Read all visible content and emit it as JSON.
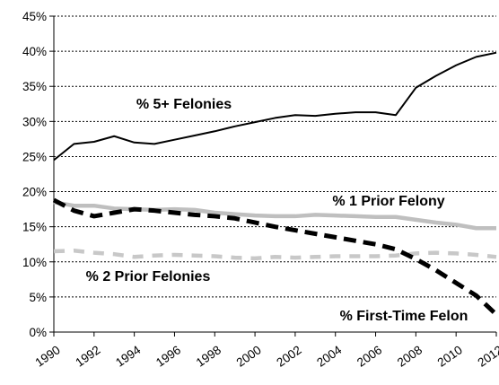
{
  "chart_data": {
    "type": "line",
    "x": [
      1990,
      1991,
      1992,
      1993,
      1994,
      1995,
      1996,
      1997,
      1998,
      1999,
      2000,
      2001,
      2002,
      2003,
      2004,
      2005,
      2006,
      2007,
      2008,
      2009,
      2010,
      2011,
      2012
    ],
    "xlim": [
      1990,
      2012
    ],
    "xticks": [
      1990,
      1992,
      1994,
      1996,
      1998,
      2000,
      2002,
      2004,
      2006,
      2008,
      2010,
      2012
    ],
    "ylim": [
      0,
      45
    ],
    "yticks": [
      {
        "value": 0,
        "label": "0%"
      },
      {
        "value": 5,
        "label": "5%"
      },
      {
        "value": 10,
        "label": "10%"
      },
      {
        "value": 15,
        "label": "15%"
      },
      {
        "value": 20,
        "label": "20%"
      },
      {
        "value": 25,
        "label": "25%"
      },
      {
        "value": 30,
        "label": "30%"
      },
      {
        "value": 35,
        "label": "35%"
      },
      {
        "value": 40,
        "label": "40%"
      },
      {
        "value": 45,
        "label": "45%"
      }
    ],
    "grid": true,
    "series": [
      {
        "name": "% 5+ Felonies",
        "color": "#000000",
        "dashed": false,
        "values": [
          24.5,
          26.8,
          27.1,
          27.9,
          27.0,
          26.8,
          27.4,
          28.0,
          28.6,
          29.3,
          29.9,
          30.5,
          30.9,
          30.8,
          31.1,
          31.3,
          31.3,
          30.9,
          34.8,
          36.5,
          38.0,
          39.2,
          39.8
        ]
      },
      {
        "name": "% 1 Prior Felony",
        "color": "#bfbfbf",
        "dashed": false,
        "values": [
          18.5,
          18.0,
          18.0,
          17.6,
          17.5,
          17.4,
          17.5,
          17.4,
          17.0,
          16.8,
          16.6,
          16.5,
          16.5,
          16.7,
          16.6,
          16.5,
          16.4,
          16.4,
          16.0,
          15.6,
          15.3,
          14.8,
          14.8
        ]
      },
      {
        "name": "% 2 Prior Felonies",
        "color": "#c8c8c8",
        "dashed": true,
        "values": [
          11.5,
          11.6,
          11.3,
          11.1,
          10.7,
          10.9,
          11.0,
          10.9,
          10.8,
          10.6,
          10.5,
          10.7,
          10.6,
          10.7,
          10.8,
          10.8,
          10.8,
          10.9,
          11.2,
          11.3,
          11.2,
          11.0,
          10.7
        ]
      },
      {
        "name": "% First-Time Felon",
        "color": "#000000",
        "dashed": true,
        "values": [
          18.8,
          17.3,
          16.5,
          17.0,
          17.5,
          17.3,
          17.0,
          16.7,
          16.5,
          16.2,
          15.6,
          15.0,
          14.5,
          14.0,
          13.5,
          13.0,
          12.5,
          11.8,
          10.4,
          8.8,
          7.0,
          5.2,
          2.5
        ]
      }
    ]
  }
}
